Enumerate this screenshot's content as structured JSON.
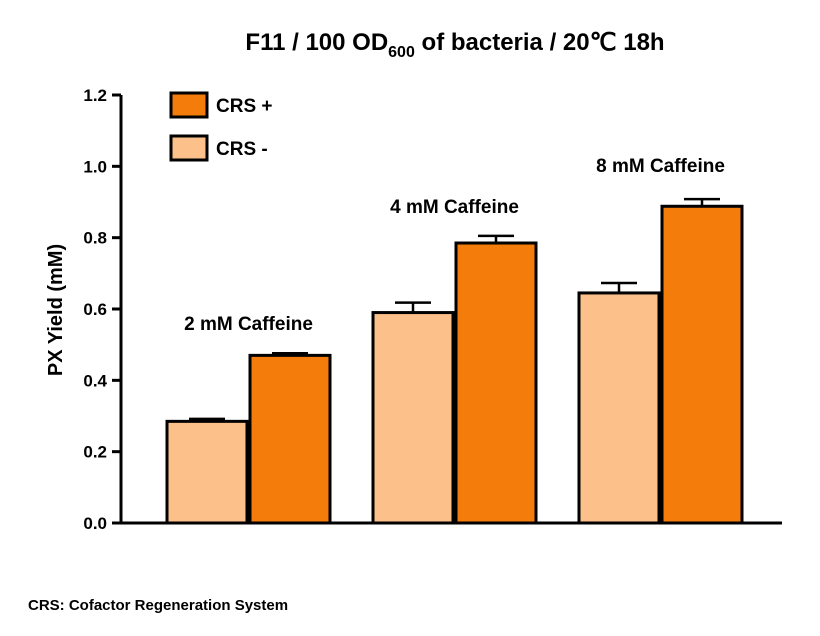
{
  "chart_data": {
    "type": "bar",
    "title": {
      "prefix": "F11 / 100 OD",
      "subscript": "600",
      "suffix": " of bacteria / 20℃ 18h"
    },
    "ylabel": "PX Yield (mM)",
    "ylim": [
      0,
      1.2
    ],
    "yticks": [
      "0.0",
      "0.2",
      "0.4",
      "0.6",
      "0.8",
      "1.0",
      "1.2"
    ],
    "categories": [
      "2 mM Caffeine",
      "4 mM Caffeine",
      "8 mM Caffeine"
    ],
    "series": [
      {
        "name": "CRS -",
        "color": "#FCC08A",
        "values": [
          0.285,
          0.59,
          0.645
        ],
        "errors": [
          0.007,
          0.028,
          0.028
        ]
      },
      {
        "name": "CRS +",
        "color": "#F47C0A",
        "values": [
          0.47,
          0.785,
          0.888
        ],
        "errors": [
          0.006,
          0.02,
          0.02
        ]
      }
    ],
    "legend": {
      "placement": "top-left",
      "order": [
        "CRS +",
        "CRS -"
      ]
    },
    "grid": false
  },
  "footnote": "CRS: Cofactor Regeneration System"
}
